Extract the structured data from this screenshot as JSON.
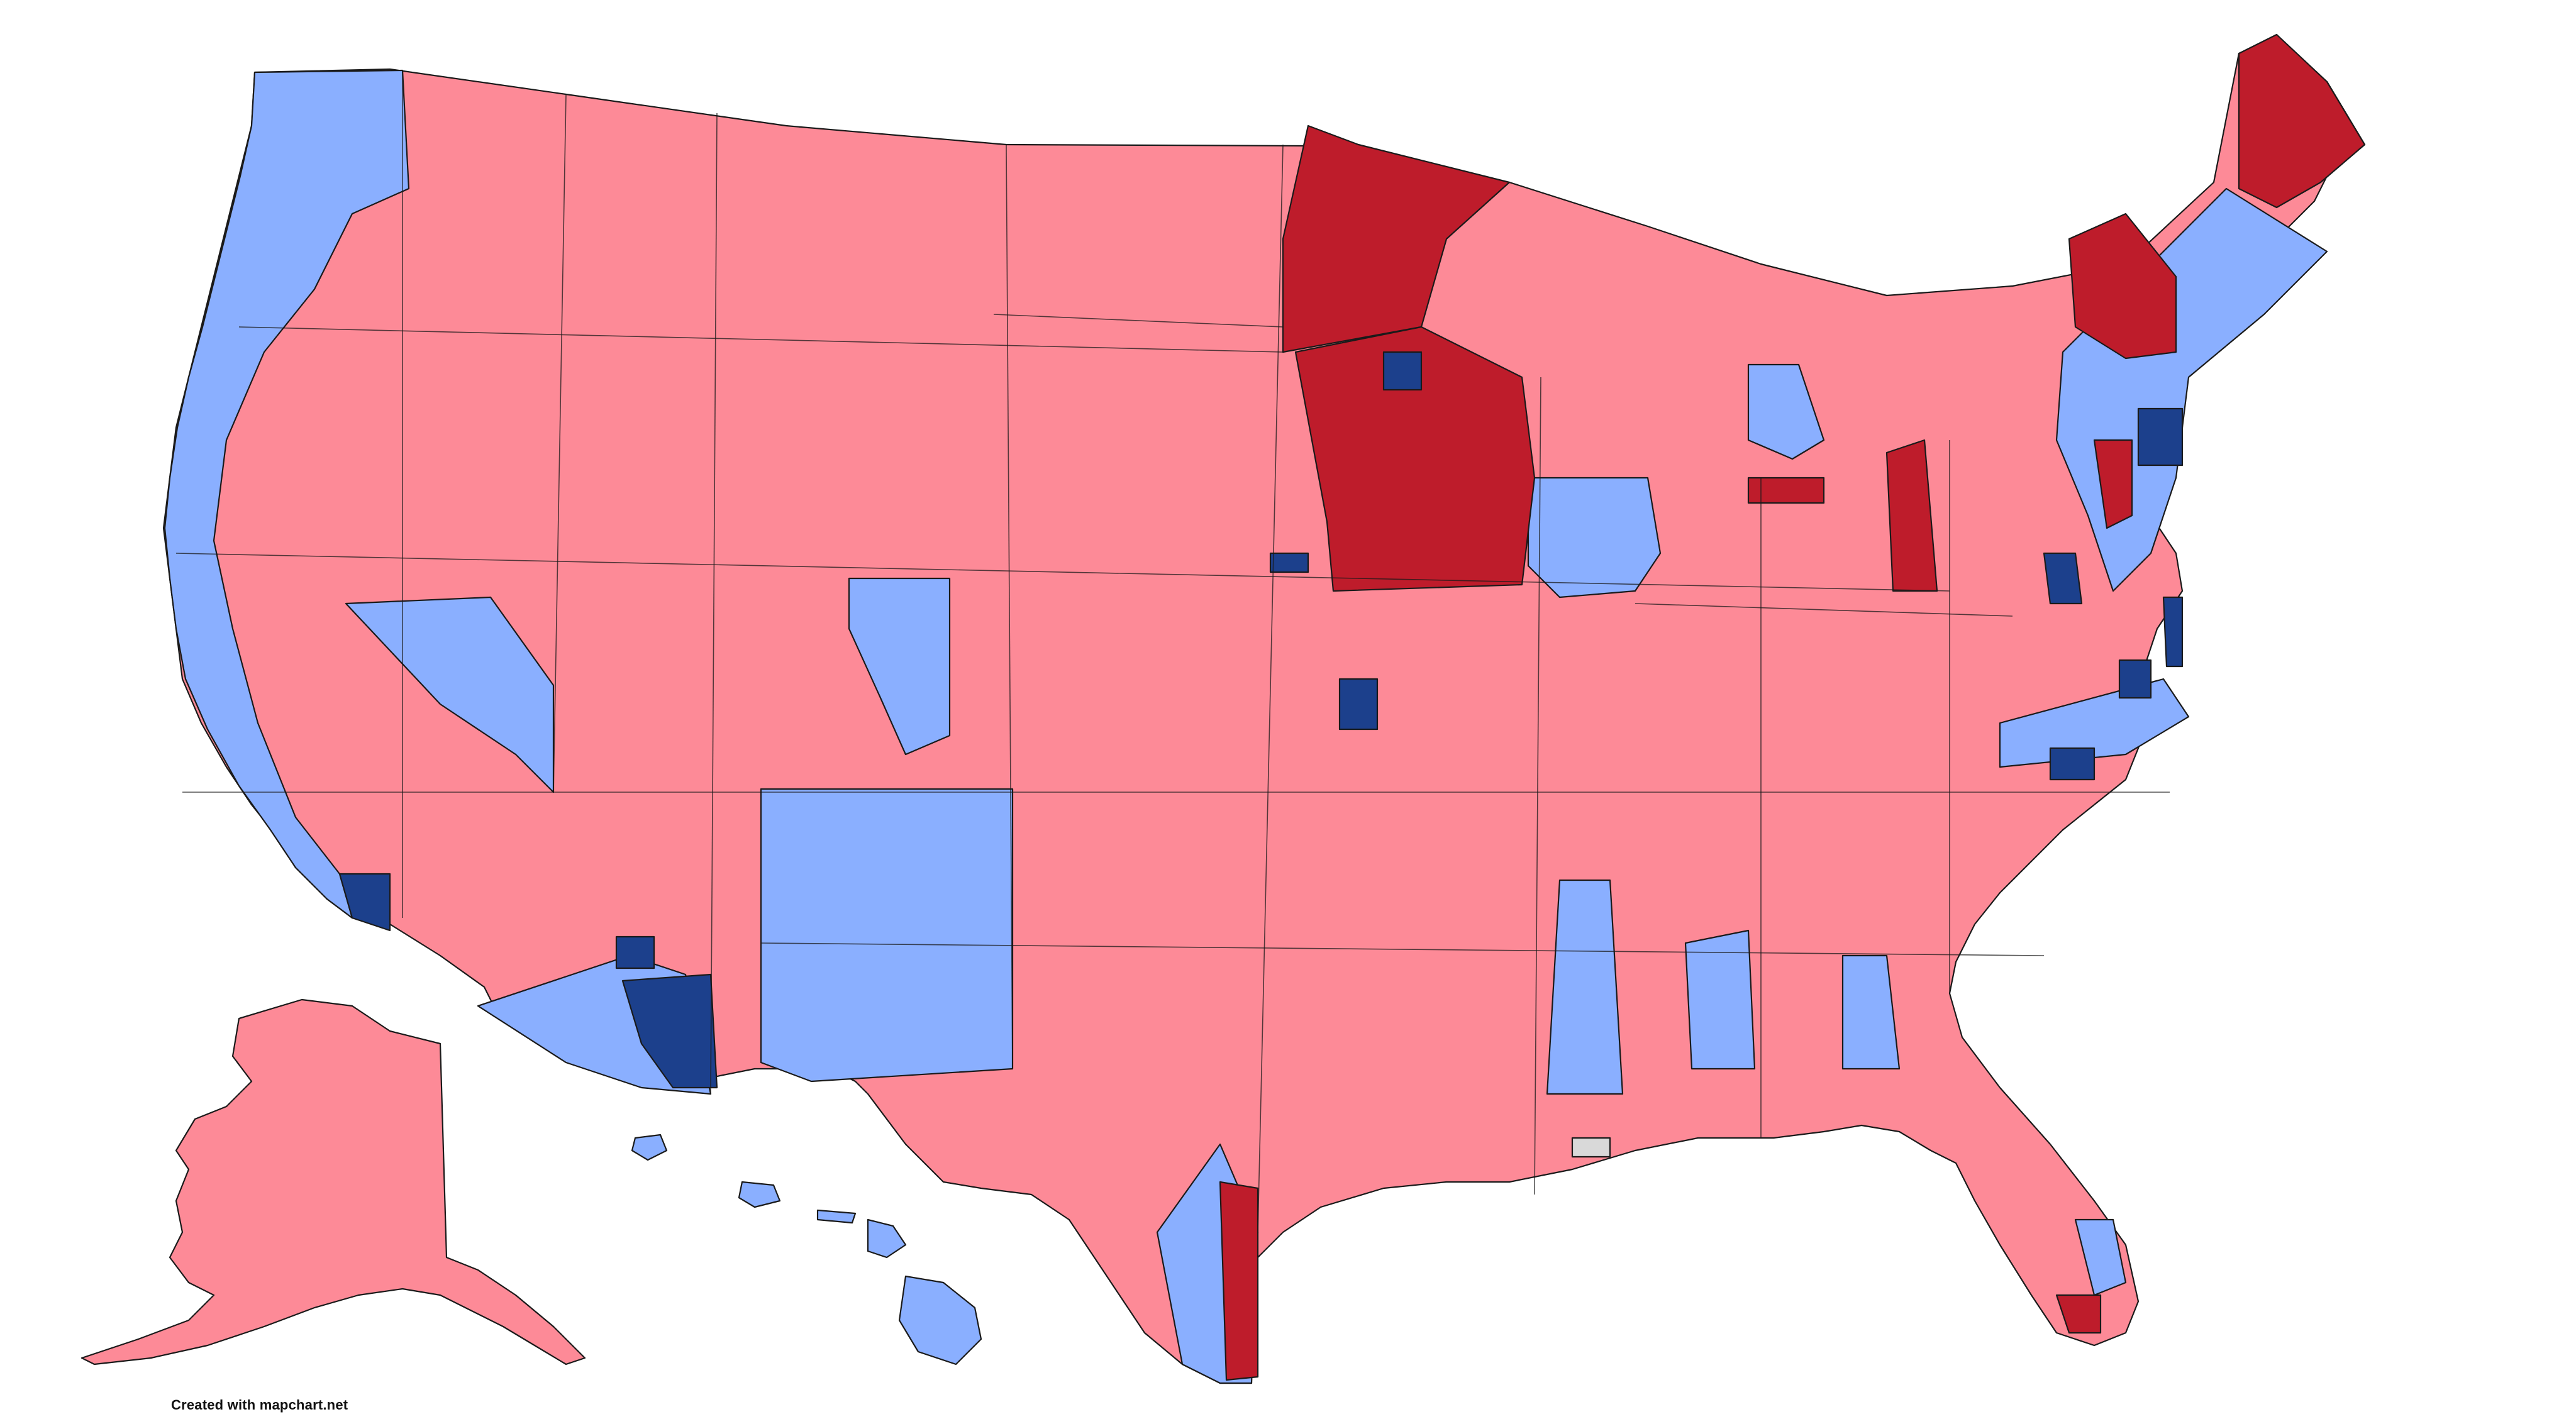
{
  "map": {
    "kind": "us-congressional-districts",
    "legend_colors": {
      "safe_r": "#fd8a97",
      "strong_r": "#be1c2b",
      "safe_d": "#8aafff",
      "strong_d": "#1c408c",
      "no_data": "#d9d9d9"
    }
  },
  "footer": {
    "credit": "Created with mapchart.net"
  }
}
